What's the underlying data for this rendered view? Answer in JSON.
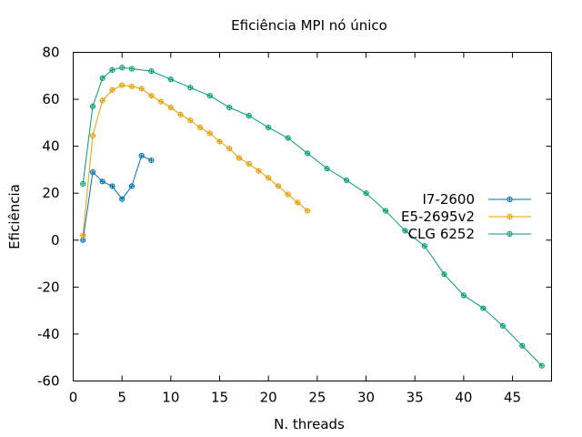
{
  "chart_data": {
    "type": "line",
    "title": "Eficiência MPI nó único",
    "xlabel": "N. threads",
    "ylabel": "Eficiência",
    "xlim": [
      0,
      49
    ],
    "ylim": [
      -60,
      80
    ],
    "xticks": [
      0,
      5,
      10,
      15,
      20,
      25,
      30,
      35,
      40,
      45
    ],
    "yticks": [
      -60,
      -40,
      -20,
      0,
      20,
      40,
      60,
      80
    ],
    "grid": false,
    "legend": "right",
    "series": [
      {
        "name": "I7-2600",
        "color": "#0072b2",
        "x": [
          1,
          2,
          3,
          4,
          5,
          6,
          7,
          8
        ],
        "y": [
          0,
          29,
          25,
          23,
          17.5,
          23,
          36,
          34
        ]
      },
      {
        "name": "E5-2695v2",
        "color": "#e69f00",
        "x": [
          1,
          2,
          3,
          4,
          5,
          6,
          7,
          8,
          9,
          10,
          11,
          12,
          13,
          14,
          15,
          16,
          17,
          18,
          19,
          20,
          21,
          22,
          23,
          24
        ],
        "y": [
          2,
          44.5,
          59.5,
          64,
          66,
          65.5,
          64.5,
          61.5,
          59,
          56.5,
          53.5,
          51,
          48,
          45.5,
          42,
          39,
          35,
          32.5,
          29.5,
          26.5,
          23,
          19.5,
          16,
          12.5
        ]
      },
      {
        "name": "CLG 6252",
        "color": "#009e73",
        "x": [
          1,
          2,
          3,
          4,
          5,
          6,
          8,
          10,
          12,
          14,
          16,
          18,
          20,
          22,
          24,
          26,
          28,
          30,
          32,
          34,
          36,
          38,
          40,
          42,
          44,
          46,
          48
        ],
        "y": [
          24,
          57,
          69,
          72.5,
          73.5,
          73,
          72,
          68.5,
          65,
          61.5,
          56.5,
          53,
          48,
          43.5,
          37,
          30.5,
          25.5,
          20,
          12.5,
          4,
          -2.5,
          -14.5,
          -23.5,
          -29,
          -36.5,
          -45,
          -53.5
        ]
      }
    ]
  }
}
